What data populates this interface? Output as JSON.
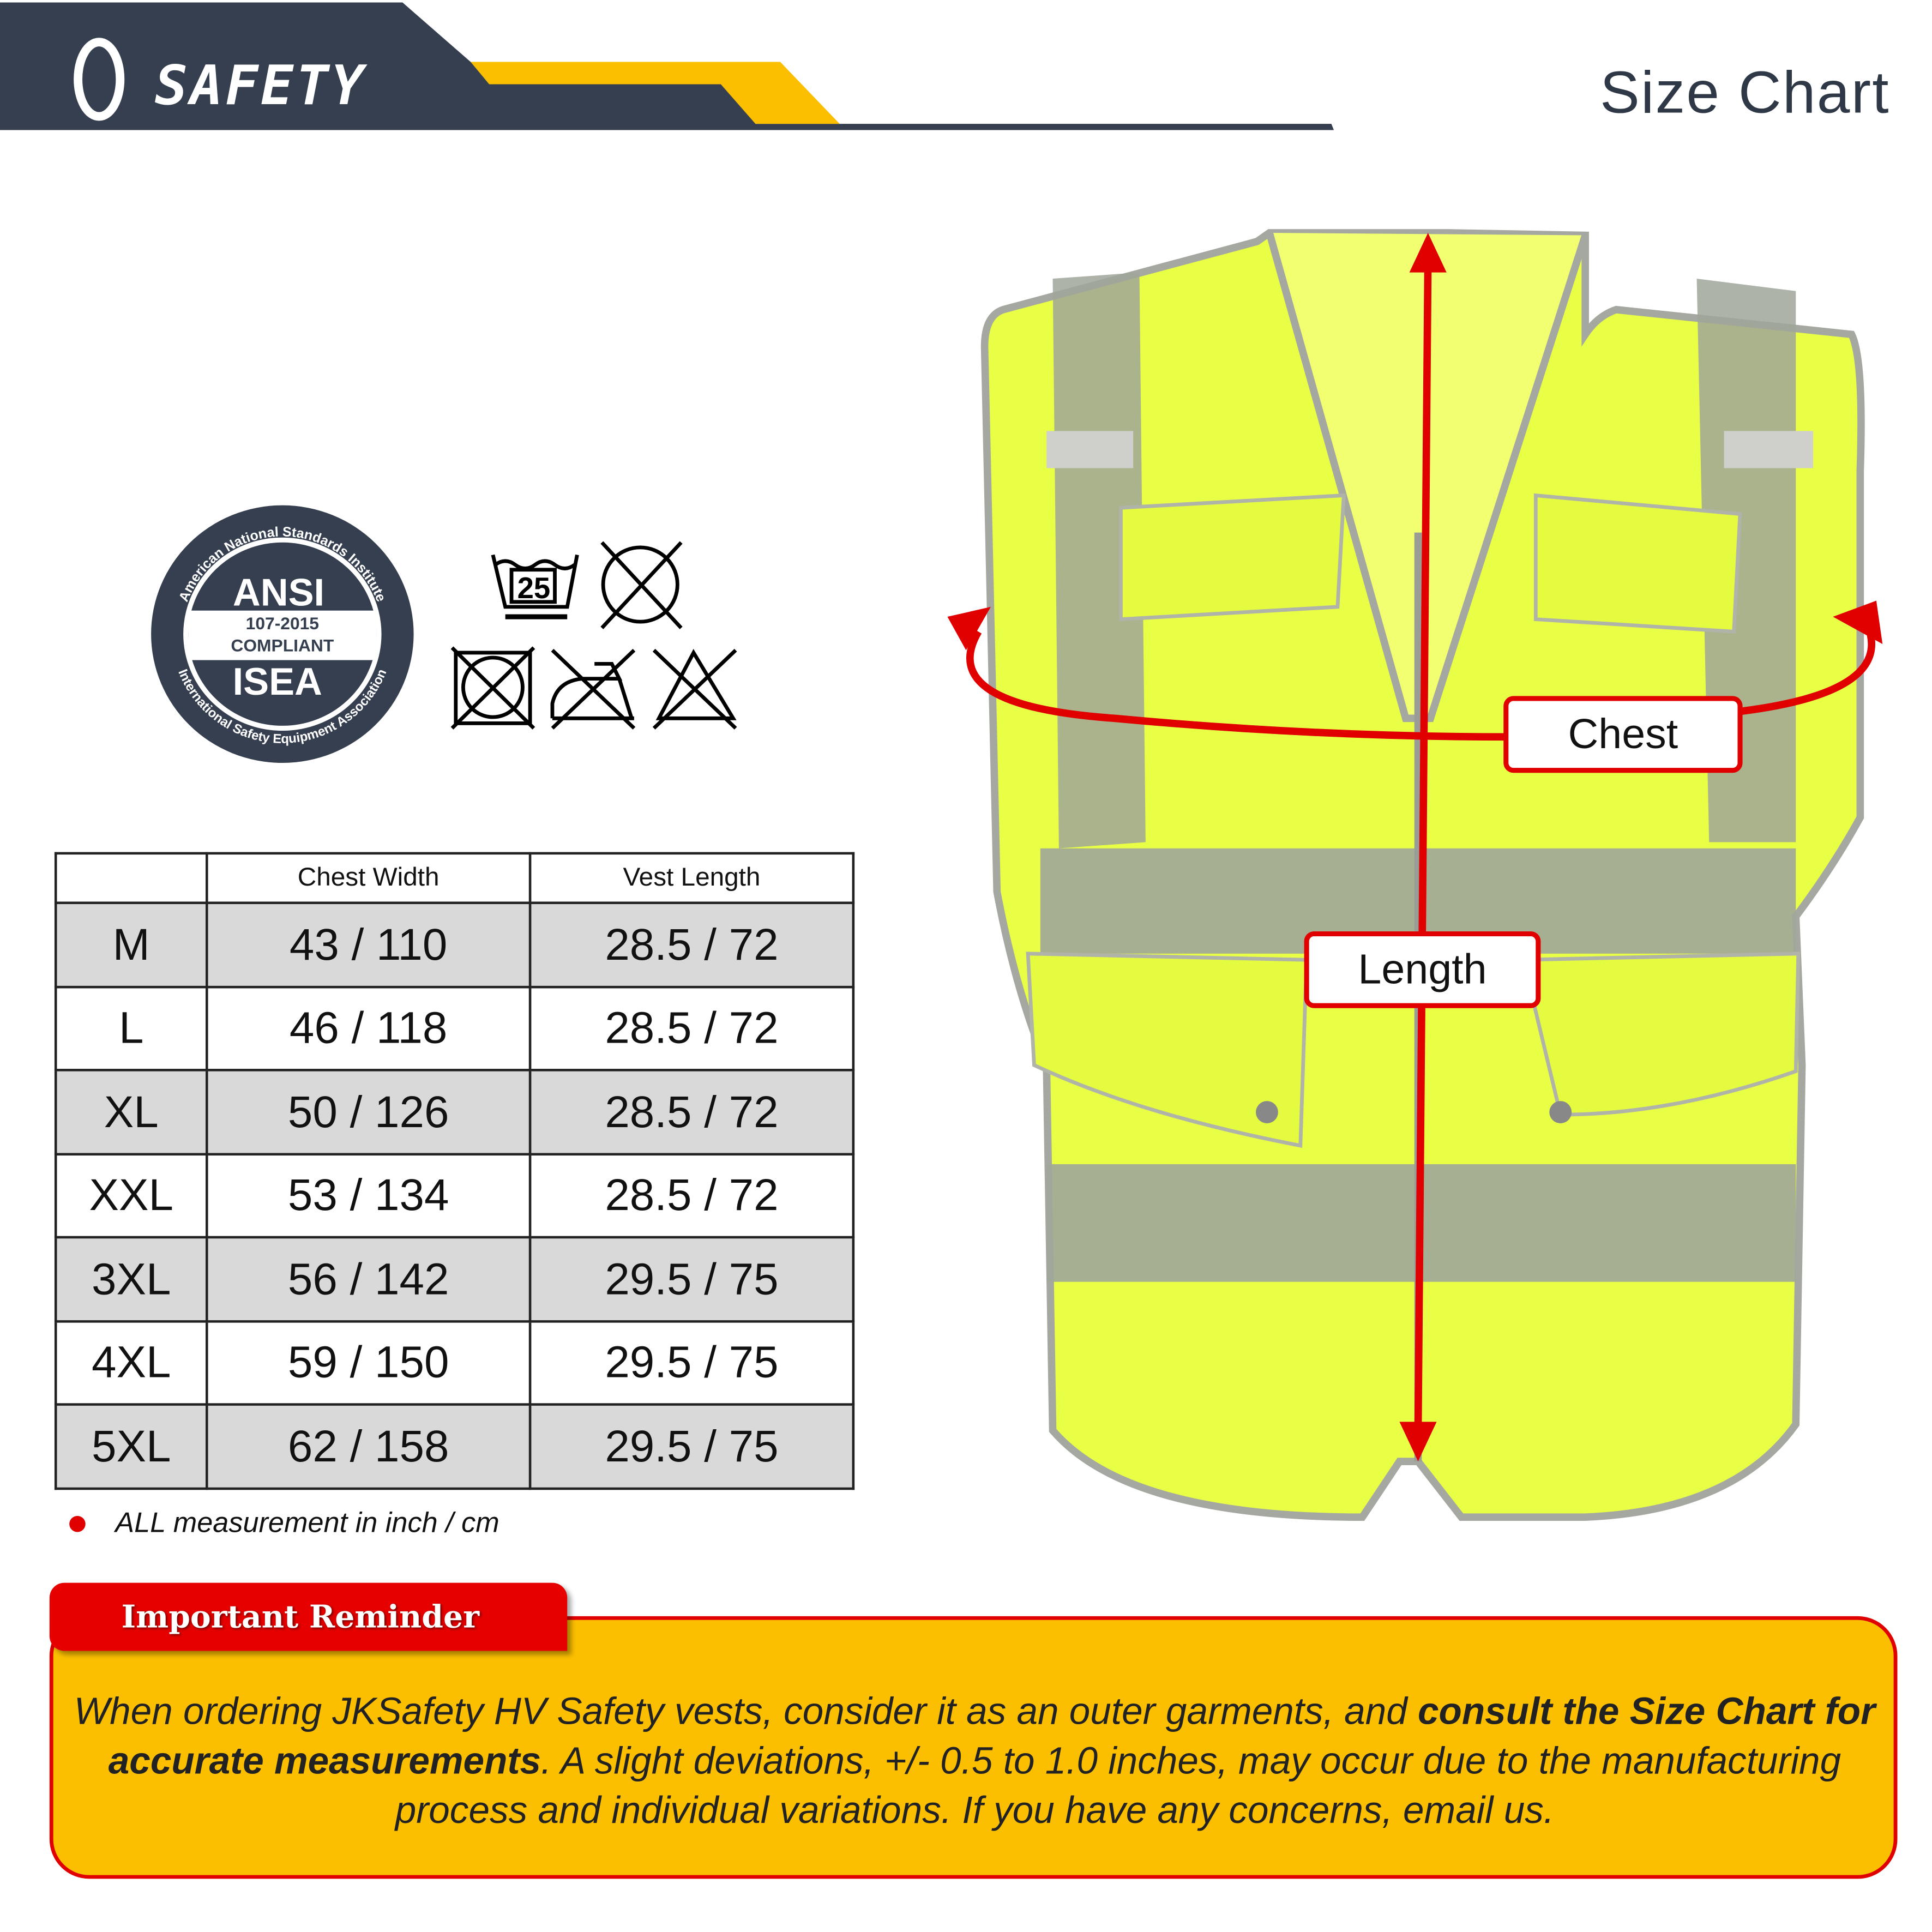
{
  "header": {
    "brand": "JK SAFETY",
    "title": "Size Chart",
    "colors": {
      "dark": "#353f4f",
      "yellow": "#fbbf00"
    }
  },
  "badge": {
    "center_top": "ANSI",
    "code": "107-2015",
    "status": "COMPLIANT",
    "center_bottom": "ISEA",
    "ring_top": "American National Standards Institute",
    "ring_bottom": "International Safety Equipment Association"
  },
  "care_icons": [
    {
      "icon": "wash-25-icon",
      "label": "25"
    },
    {
      "icon": "do-not-dry-clean-icon"
    },
    {
      "icon": "do-not-tumble-dry-icon"
    },
    {
      "icon": "do-not-iron-icon"
    },
    {
      "icon": "do-not-bleach-icon"
    }
  ],
  "size_table": {
    "columns": [
      "",
      "Chest Width",
      "Vest Length"
    ],
    "rows": [
      [
        "M",
        "43 / 110",
        "28.5 / 72"
      ],
      [
        "L",
        "46 / 118",
        "28.5 / 72"
      ],
      [
        "XL",
        "50 / 126",
        "28.5 / 72"
      ],
      [
        "XXL",
        "53 / 134",
        "28.5 / 72"
      ],
      [
        "3XL",
        "56 / 142",
        "29.5 / 75"
      ],
      [
        "4XL",
        "59 / 150",
        "29.5 / 75"
      ],
      [
        "5XL",
        "62 / 158",
        "29.5 / 75"
      ]
    ],
    "note": "ALL measurement in inch / cm"
  },
  "vest": {
    "chest_label": "Chest",
    "length_label": "Length",
    "colors": {
      "vest": "#e9ff45",
      "stripe": "#9ea39a",
      "arrow": "#e00000"
    }
  },
  "reminder": {
    "title": "Important Reminder",
    "text_1": "When ordering JKSafety HV Safety vests, consider it as an outer garments, and ",
    "text_bold": "consult the Size Chart for accurate measurements",
    "text_2": ". A slight deviations, +/- 0.5 to 1.0 inches, may occur due to the manufacturing process and individual variations. If you have any concerns, email us."
  }
}
